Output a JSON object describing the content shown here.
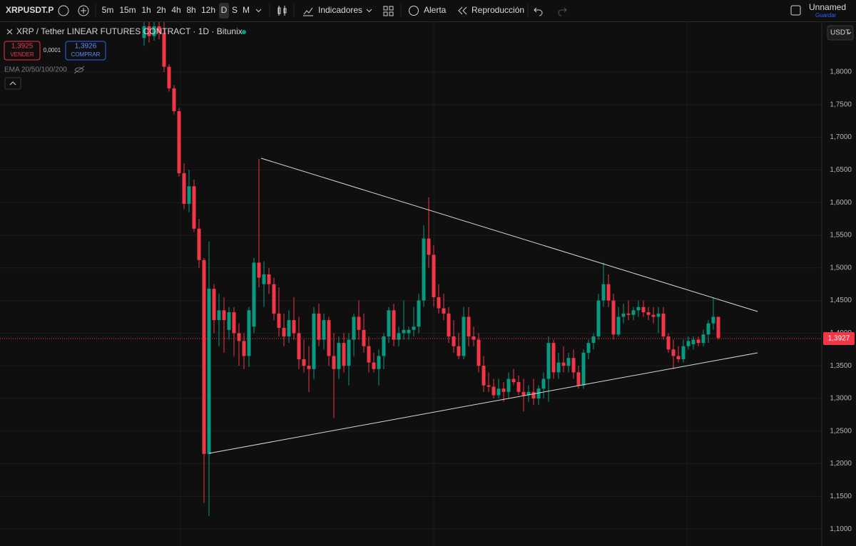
{
  "toolbar": {
    "symbol": "XRPUSDT.P",
    "intervals": [
      "5m",
      "15m",
      "1h",
      "2h",
      "4h",
      "8h",
      "12h",
      "D",
      "S",
      "M"
    ],
    "indicators": "Indicadores",
    "alert": "Alerta",
    "replay": "Reproducción",
    "layout_name": "Unnamed",
    "save": "Guardar"
  },
  "legend": {
    "title": "XRP / Tether LINEAR FUTURES CONTRACT · 1D · Bitunix",
    "sell_price": "1,3925",
    "sell": "VENDER",
    "spread": "0,0001",
    "buy_price": "1,3926",
    "buy": "COMPRAR",
    "indicator": "EMA 20/50/100/200"
  },
  "price_scale": {
    "currency": "USDT",
    "current": "1,3927"
  },
  "chart_data": {
    "type": "candlestick",
    "up_color": "#089981",
    "down_color": "#f23645",
    "grid": true,
    "ylim": [
      1.074,
      1.8775
    ],
    "yticks": [
      {
        "value": 1.1,
        "label": "1,1000"
      },
      {
        "value": 1.15,
        "label": "1,1500"
      },
      {
        "value": 1.2,
        "label": "1,2000"
      },
      {
        "value": 1.25,
        "label": "1,2500"
      },
      {
        "value": 1.3,
        "label": "1,3000"
      },
      {
        "value": 1.35,
        "label": "1,3500"
      },
      {
        "value": 1.4,
        "label": "1,4000"
      },
      {
        "value": 1.45,
        "label": "1,4500"
      },
      {
        "value": 1.5,
        "label": "1,5000"
      },
      {
        "value": 1.55,
        "label": "1,5500"
      },
      {
        "value": 1.6,
        "label": "1,6000"
      },
      {
        "value": 1.65,
        "label": "1,6500"
      },
      {
        "value": 1.7,
        "label": "1,7000"
      },
      {
        "value": 1.75,
        "label": "1,7500"
      },
      {
        "value": 1.8,
        "label": "1,8000"
      }
    ],
    "ohlc": [
      [
        1.852,
        1.877,
        1.84,
        1.87
      ],
      [
        1.87,
        1.877,
        1.845,
        1.855
      ],
      [
        1.855,
        1.877,
        1.848,
        1.87
      ],
      [
        1.87,
        1.877,
        1.85,
        1.86
      ],
      [
        1.86,
        1.877,
        1.8,
        1.808
      ],
      [
        1.808,
        1.812,
        1.77,
        1.775
      ],
      [
        1.775,
        1.78,
        1.735,
        1.74
      ],
      [
        1.74,
        1.745,
        1.64,
        1.645
      ],
      [
        1.645,
        1.66,
        1.59,
        1.598
      ],
      [
        1.598,
        1.65,
        1.585,
        1.625
      ],
      [
        1.625,
        1.635,
        1.555,
        1.56
      ],
      [
        1.56,
        1.575,
        1.5,
        1.512
      ],
      [
        1.512,
        1.515,
        1.14,
        1.215
      ],
      [
        1.215,
        1.54,
        1.12,
        1.468
      ],
      [
        1.468,
        1.475,
        1.4,
        1.42
      ],
      [
        1.42,
        1.46,
        1.38,
        1.435
      ],
      [
        1.435,
        1.455,
        1.37,
        1.42
      ],
      [
        1.405,
        1.44,
        1.39,
        1.432
      ],
      [
        1.432,
        1.44,
        1.365,
        1.4
      ],
      [
        1.4,
        1.415,
        1.35,
        1.388
      ],
      [
        1.388,
        1.4,
        1.345,
        1.365
      ],
      [
        1.365,
        1.44,
        1.348,
        1.435
      ],
      [
        1.41,
        1.515,
        1.4,
        1.508
      ],
      [
        1.508,
        1.667,
        1.47,
        1.485
      ],
      [
        1.475,
        1.51,
        1.44,
        1.49
      ],
      [
        1.49,
        1.5,
        1.46,
        1.475
      ],
      [
        1.475,
        1.485,
        1.42,
        1.43
      ],
      [
        1.43,
        1.47,
        1.395,
        1.408
      ],
      [
        1.408,
        1.43,
        1.38,
        1.395
      ],
      [
        1.395,
        1.435,
        1.385,
        1.42
      ],
      [
        1.42,
        1.455,
        1.39,
        1.4
      ],
      [
        1.4,
        1.425,
        1.345,
        1.36
      ],
      [
        1.36,
        1.39,
        1.34,
        1.35
      ],
      [
        1.35,
        1.38,
        1.31,
        1.345
      ],
      [
        1.345,
        1.44,
        1.33,
        1.43
      ],
      [
        1.43,
        1.445,
        1.38,
        1.39
      ],
      [
        1.39,
        1.43,
        1.375,
        1.42
      ],
      [
        1.42,
        1.425,
        1.35,
        1.365
      ],
      [
        1.365,
        1.4,
        1.27,
        1.345
      ],
      [
        1.345,
        1.395,
        1.33,
        1.385
      ],
      [
        1.385,
        1.4,
        1.34,
        1.35
      ],
      [
        1.35,
        1.4,
        1.32,
        1.39
      ],
      [
        1.39,
        1.43,
        1.365,
        1.425
      ],
      [
        1.425,
        1.45,
        1.39,
        1.405
      ],
      [
        1.405,
        1.43,
        1.37,
        1.38
      ],
      [
        1.38,
        1.395,
        1.34,
        1.355
      ],
      [
        1.355,
        1.37,
        1.34,
        1.345
      ],
      [
        1.345,
        1.375,
        1.32,
        1.365
      ],
      [
        1.365,
        1.4,
        1.345,
        1.395
      ],
      [
        1.395,
        1.44,
        1.385,
        1.435
      ],
      [
        1.435,
        1.445,
        1.38,
        1.39
      ],
      [
        1.39,
        1.41,
        1.38,
        1.4
      ],
      [
        1.4,
        1.45,
        1.39,
        1.405
      ],
      [
        1.4,
        1.41,
        1.39,
        1.405
      ],
      [
        1.405,
        1.44,
        1.395,
        1.41
      ],
      [
        1.41,
        1.46,
        1.4,
        1.45
      ],
      [
        1.45,
        1.565,
        1.44,
        1.545
      ],
      [
        1.545,
        1.608,
        1.5,
        1.52
      ],
      [
        1.52,
        1.535,
        1.44,
        1.455
      ],
      [
        1.455,
        1.475,
        1.43,
        1.438
      ],
      [
        1.438,
        1.46,
        1.42,
        1.43
      ],
      [
        1.43,
        1.44,
        1.385,
        1.395
      ],
      [
        1.395,
        1.42,
        1.37,
        1.38
      ],
      [
        1.38,
        1.4,
        1.36,
        1.365
      ],
      [
        1.365,
        1.44,
        1.36,
        1.425
      ],
      [
        1.425,
        1.44,
        1.38,
        1.395
      ],
      [
        1.395,
        1.41,
        1.38,
        1.39
      ],
      [
        1.39,
        1.4,
        1.34,
        1.35
      ],
      [
        1.35,
        1.365,
        1.31,
        1.32
      ],
      [
        1.32,
        1.34,
        1.31,
        1.318
      ],
      [
        1.318,
        1.33,
        1.3,
        1.305
      ],
      [
        1.305,
        1.33,
        1.3,
        1.315
      ],
      [
        1.315,
        1.325,
        1.295,
        1.31
      ],
      [
        1.31,
        1.34,
        1.3,
        1.33
      ],
      [
        1.33,
        1.345,
        1.32,
        1.325
      ],
      [
        1.325,
        1.335,
        1.305,
        1.31
      ],
      [
        1.31,
        1.33,
        1.28,
        1.305
      ],
      [
        1.305,
        1.32,
        1.295,
        1.31
      ],
      [
        1.31,
        1.33,
        1.29,
        1.3
      ],
      [
        1.3,
        1.32,
        1.29,
        1.315
      ],
      [
        1.315,
        1.34,
        1.3,
        1.33
      ],
      [
        1.33,
        1.395,
        1.295,
        1.385
      ],
      [
        1.385,
        1.39,
        1.33,
        1.34
      ],
      [
        1.34,
        1.37,
        1.33,
        1.355
      ],
      [
        1.355,
        1.38,
        1.34,
        1.35
      ],
      [
        1.35,
        1.37,
        1.34,
        1.362
      ],
      [
        1.362,
        1.375,
        1.33,
        1.34
      ],
      [
        1.34,
        1.35,
        1.315,
        1.32
      ],
      [
        1.32,
        1.375,
        1.315,
        1.37
      ],
      [
        1.37,
        1.39,
        1.36,
        1.385
      ],
      [
        1.385,
        1.4,
        1.375,
        1.395
      ],
      [
        1.395,
        1.46,
        1.39,
        1.45
      ],
      [
        1.45,
        1.508,
        1.44,
        1.475
      ],
      [
        1.475,
        1.49,
        1.44,
        1.45
      ],
      [
        1.45,
        1.46,
        1.39,
        1.398
      ],
      [
        1.398,
        1.44,
        1.395,
        1.425
      ],
      [
        1.425,
        1.445,
        1.415,
        1.43
      ],
      [
        1.43,
        1.45,
        1.42,
        1.428
      ],
      [
        1.428,
        1.44,
        1.42,
        1.435
      ],
      [
        1.435,
        1.45,
        1.425,
        1.44
      ],
      [
        1.44,
        1.45,
        1.425,
        1.432
      ],
      [
        1.432,
        1.44,
        1.42,
        1.428
      ],
      [
        1.428,
        1.44,
        1.415,
        1.425
      ],
      [
        1.425,
        1.44,
        1.4,
        1.43
      ],
      [
        1.43,
        1.44,
        1.39,
        1.395
      ],
      [
        1.395,
        1.4,
        1.37,
        1.375
      ],
      [
        1.375,
        1.39,
        1.345,
        1.365
      ],
      [
        1.365,
        1.38,
        1.355,
        1.36
      ],
      [
        1.36,
        1.39,
        1.355,
        1.38
      ],
      [
        1.38,
        1.395,
        1.375,
        1.388
      ],
      [
        1.383,
        1.395,
        1.375,
        1.39
      ],
      [
        1.39,
        1.395,
        1.38,
        1.385
      ],
      [
        1.385,
        1.405,
        1.38,
        1.398
      ],
      [
        1.398,
        1.42,
        1.385,
        1.415
      ],
      [
        1.415,
        1.455,
        1.405,
        1.425
      ],
      [
        1.425,
        1.425,
        1.39,
        1.3927
      ]
    ]
  }
}
